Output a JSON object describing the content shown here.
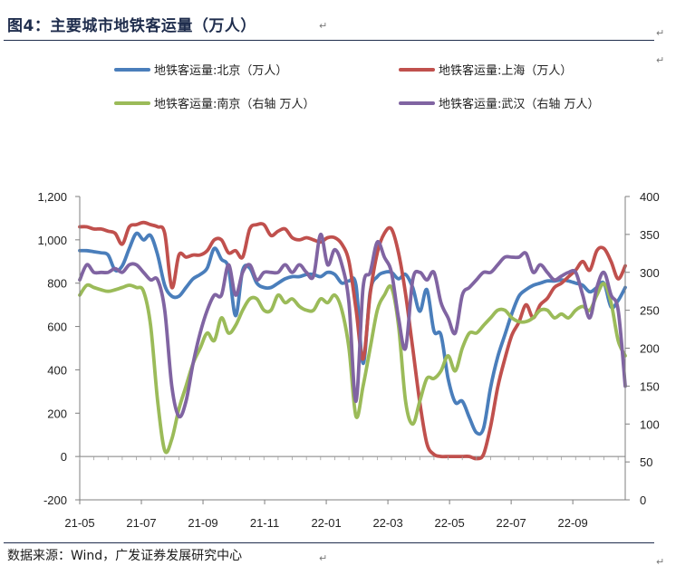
{
  "header": {
    "title": "图4：主要城市地铁客运量（万人）"
  },
  "footer": {
    "source": "数据来源：Wind，广发证券发展研究中心"
  },
  "chart_data": {
    "type": "line",
    "title": "图4：主要城市地铁客运量（万人）",
    "x_tick_labels": [
      "21-05",
      "21-07",
      "21-09",
      "21-11",
      "22-01",
      "22-03",
      "22-05",
      "22-07",
      "22-09"
    ],
    "x_range_weeks": [
      0,
      77
    ],
    "x_tick_weeks": [
      0,
      8.7,
      17.4,
      26.1,
      34.8,
      43.5,
      52.2,
      60.9,
      69.6
    ],
    "left_axis": {
      "min": -200,
      "max": 1200,
      "step": 200,
      "tick_labels": [
        "-200",
        "0",
        "200",
        "400",
        "600",
        "800",
        "1,000",
        "1,200"
      ]
    },
    "right_axis": {
      "min": 0,
      "max": 400,
      "step": 50,
      "tick_labels": [
        "0",
        "50",
        "100",
        "150",
        "200",
        "250",
        "300",
        "350",
        "400"
      ]
    },
    "legend_position": "top",
    "series": [
      {
        "name": "地铁客运量:北京（万人）",
        "axis": "left",
        "color": "#4a7ebb",
        "points": [
          [
            0,
            950
          ],
          [
            1,
            950
          ],
          [
            2,
            945
          ],
          [
            3,
            940
          ],
          [
            4,
            930
          ],
          [
            5,
            860
          ],
          [
            6,
            880
          ],
          [
            7,
            960
          ],
          [
            8,
            1030
          ],
          [
            9,
            1000
          ],
          [
            10,
            1020
          ],
          [
            11,
            930
          ],
          [
            12,
            790
          ],
          [
            13,
            740
          ],
          [
            14,
            740
          ],
          [
            15,
            780
          ],
          [
            16,
            820
          ],
          [
            17,
            840
          ],
          [
            18,
            870
          ],
          [
            19,
            960
          ],
          [
            20,
            910
          ],
          [
            21,
            870
          ],
          [
            22,
            650
          ],
          [
            23,
            860
          ],
          [
            24,
            870
          ],
          [
            25,
            800
          ],
          [
            26,
            780
          ],
          [
            27,
            780
          ],
          [
            28,
            800
          ],
          [
            29,
            820
          ],
          [
            30,
            830
          ],
          [
            31,
            830
          ],
          [
            32,
            840
          ],
          [
            33,
            840
          ],
          [
            34,
            830
          ],
          [
            35,
            850
          ],
          [
            36,
            840
          ],
          [
            37,
            800
          ],
          [
            38,
            810
          ],
          [
            39,
            790
          ],
          [
            40,
            430
          ],
          [
            41,
            760
          ],
          [
            42,
            830
          ],
          [
            43,
            850
          ],
          [
            44,
            850
          ],
          [
            45,
            820
          ],
          [
            46,
            840
          ],
          [
            47,
            780
          ],
          [
            48,
            670
          ],
          [
            49,
            770
          ],
          [
            50,
            580
          ],
          [
            51,
            560
          ],
          [
            52,
            360
          ],
          [
            53,
            250
          ],
          [
            54,
            255
          ],
          [
            55,
            180
          ],
          [
            56,
            110
          ],
          [
            57,
            130
          ],
          [
            58,
            320
          ],
          [
            59,
            460
          ],
          [
            60,
            560
          ],
          [
            61,
            660
          ],
          [
            62,
            740
          ],
          [
            63,
            770
          ],
          [
            64,
            790
          ],
          [
            65,
            800
          ],
          [
            66,
            810
          ],
          [
            67,
            810
          ],
          [
            68,
            815
          ],
          [
            69,
            810
          ],
          [
            70,
            800
          ],
          [
            71,
            790
          ],
          [
            72,
            760
          ],
          [
            73,
            780
          ],
          [
            74,
            800
          ],
          [
            75,
            690
          ],
          [
            76,
            720
          ],
          [
            77,
            780
          ]
        ]
      },
      {
        "name": "地铁客运量:上海（万人）",
        "axis": "left",
        "color": "#c0504d",
        "points": [
          [
            0,
            1060
          ],
          [
            1,
            1060
          ],
          [
            2,
            1050
          ],
          [
            3,
            1050
          ],
          [
            4,
            1040
          ],
          [
            5,
            1030
          ],
          [
            6,
            980
          ],
          [
            7,
            1060
          ],
          [
            8,
            1070
          ],
          [
            9,
            1080
          ],
          [
            10,
            1070
          ],
          [
            11,
            1060
          ],
          [
            12,
            1030
          ],
          [
            13,
            780
          ],
          [
            14,
            930
          ],
          [
            15,
            920
          ],
          [
            16,
            930
          ],
          [
            17,
            930
          ],
          [
            18,
            950
          ],
          [
            19,
            1000
          ],
          [
            20,
            1000
          ],
          [
            21,
            940
          ],
          [
            22,
            950
          ],
          [
            23,
            920
          ],
          [
            24,
            1050
          ],
          [
            25,
            1070
          ],
          [
            26,
            1070
          ],
          [
            27,
            1020
          ],
          [
            28,
            1040
          ],
          [
            29,
            1050
          ],
          [
            30,
            1010
          ],
          [
            31,
            1000
          ],
          [
            32,
            1010
          ],
          [
            33,
            1000
          ],
          [
            34,
            990
          ],
          [
            35,
            1010
          ],
          [
            36,
            1010
          ],
          [
            37,
            980
          ],
          [
            38,
            900
          ],
          [
            39,
            680
          ],
          [
            40,
            450
          ],
          [
            41,
            750
          ],
          [
            42,
            940
          ],
          [
            43,
            1030
          ],
          [
            44,
            1050
          ],
          [
            45,
            940
          ],
          [
            46,
            750
          ],
          [
            47,
            500
          ],
          [
            48,
            250
          ],
          [
            49,
            60
          ],
          [
            50,
            10
          ],
          [
            51,
            0
          ],
          [
            52,
            0
          ],
          [
            53,
            0
          ],
          [
            54,
            0
          ],
          [
            55,
            0
          ],
          [
            56,
            -10
          ],
          [
            57,
            10
          ],
          [
            58,
            140
          ],
          [
            59,
            320
          ],
          [
            60,
            450
          ],
          [
            61,
            560
          ],
          [
            62,
            620
          ],
          [
            63,
            700
          ],
          [
            64,
            640
          ],
          [
            65,
            700
          ],
          [
            66,
            730
          ],
          [
            67,
            780
          ],
          [
            68,
            800
          ],
          [
            69,
            830
          ],
          [
            70,
            860
          ],
          [
            71,
            900
          ],
          [
            72,
            860
          ],
          [
            73,
            950
          ],
          [
            74,
            960
          ],
          [
            75,
            900
          ],
          [
            76,
            820
          ],
          [
            77,
            880
          ]
        ]
      },
      {
        "name": "地铁客运量:南京（右轴 万人）",
        "axis": "right",
        "color": "#9bbb59",
        "points": [
          [
            0,
            270
          ],
          [
            1,
            283
          ],
          [
            2,
            280
          ],
          [
            3,
            277
          ],
          [
            4,
            275
          ],
          [
            5,
            277
          ],
          [
            6,
            280
          ],
          [
            7,
            283
          ],
          [
            8,
            280
          ],
          [
            9,
            275
          ],
          [
            10,
            230
          ],
          [
            11,
            130
          ],
          [
            12,
            65
          ],
          [
            13,
            80
          ],
          [
            14,
            120
          ],
          [
            15,
            150
          ],
          [
            16,
            180
          ],
          [
            17,
            200
          ],
          [
            18,
            220
          ],
          [
            19,
            210
          ],
          [
            20,
            240
          ],
          [
            21,
            220
          ],
          [
            22,
            230
          ],
          [
            23,
            250
          ],
          [
            24,
            265
          ],
          [
            25,
            265
          ],
          [
            26,
            250
          ],
          [
            27,
            250
          ],
          [
            28,
            270
          ],
          [
            29,
            260
          ],
          [
            30,
            265
          ],
          [
            31,
            255
          ],
          [
            32,
            250
          ],
          [
            33,
            250
          ],
          [
            34,
            265
          ],
          [
            35,
            260
          ],
          [
            36,
            270
          ],
          [
            37,
            250
          ],
          [
            38,
            200
          ],
          [
            39,
            110
          ],
          [
            40,
            150
          ],
          [
            41,
            200
          ],
          [
            42,
            250
          ],
          [
            43,
            270
          ],
          [
            44,
            280
          ],
          [
            45,
            230
          ],
          [
            46,
            130
          ],
          [
            47,
            100
          ],
          [
            48,
            130
          ],
          [
            49,
            160
          ],
          [
            50,
            160
          ],
          [
            51,
            170
          ],
          [
            52,
            190
          ],
          [
            53,
            170
          ],
          [
            54,
            200
          ],
          [
            55,
            220
          ],
          [
            56,
            220
          ],
          [
            57,
            230
          ],
          [
            58,
            240
          ],
          [
            59,
            250
          ],
          [
            60,
            250
          ],
          [
            61,
            240
          ],
          [
            62,
            235
          ],
          [
            63,
            235
          ],
          [
            64,
            240
          ],
          [
            65,
            250
          ],
          [
            66,
            250
          ],
          [
            67,
            240
          ],
          [
            68,
            245
          ],
          [
            69,
            240
          ],
          [
            70,
            250
          ],
          [
            71,
            255
          ],
          [
            72,
            250
          ],
          [
            73,
            270
          ],
          [
            74,
            285
          ],
          [
            75,
            260
          ],
          [
            76,
            210
          ],
          [
            77,
            190
          ]
        ]
      },
      {
        "name": "地铁客运量:武汉（右轴 万人）",
        "axis": "right",
        "color": "#8064a2",
        "points": [
          [
            0,
            290
          ],
          [
            1,
            310
          ],
          [
            2,
            300
          ],
          [
            3,
            300
          ],
          [
            4,
            300
          ],
          [
            5,
            305
          ],
          [
            6,
            300
          ],
          [
            7,
            310
          ],
          [
            8,
            310
          ],
          [
            9,
            300
          ],
          [
            10,
            290
          ],
          [
            11,
            290
          ],
          [
            12,
            250
          ],
          [
            13,
            150
          ],
          [
            14,
            110
          ],
          [
            15,
            130
          ],
          [
            16,
            180
          ],
          [
            17,
            220
          ],
          [
            18,
            250
          ],
          [
            19,
            270
          ],
          [
            20,
            270
          ],
          [
            21,
            310
          ],
          [
            22,
            270
          ],
          [
            23,
            300
          ],
          [
            24,
            310
          ],
          [
            25,
            290
          ],
          [
            26,
            300
          ],
          [
            27,
            300
          ],
          [
            28,
            300
          ],
          [
            29,
            310
          ],
          [
            30,
            300
          ],
          [
            31,
            310
          ],
          [
            32,
            300
          ],
          [
            33,
            295
          ],
          [
            34,
            350
          ],
          [
            35,
            310
          ],
          [
            36,
            330
          ],
          [
            37,
            310
          ],
          [
            38,
            260
          ],
          [
            39,
            130
          ],
          [
            40,
            280
          ],
          [
            41,
            300
          ],
          [
            42,
            340
          ],
          [
            43,
            320
          ],
          [
            44,
            300
          ],
          [
            45,
            240
          ],
          [
            46,
            200
          ],
          [
            47,
            290
          ],
          [
            48,
            300
          ],
          [
            49,
            290
          ],
          [
            50,
            300
          ],
          [
            51,
            260
          ],
          [
            52,
            240
          ],
          [
            53,
            220
          ],
          [
            54,
            270
          ],
          [
            55,
            280
          ],
          [
            56,
            290
          ],
          [
            57,
            300
          ],
          [
            58,
            300
          ],
          [
            59,
            310
          ],
          [
            60,
            320
          ],
          [
            61,
            320
          ],
          [
            62,
            320
          ],
          [
            63,
            325
          ],
          [
            64,
            300
          ],
          [
            65,
            310
          ],
          [
            66,
            300
          ],
          [
            67,
            290
          ],
          [
            68,
            295
          ],
          [
            69,
            300
          ],
          [
            70,
            300
          ],
          [
            71,
            270
          ],
          [
            72,
            240
          ],
          [
            73,
            280
          ],
          [
            74,
            300
          ],
          [
            75,
            270
          ],
          [
            76,
            250
          ],
          [
            77,
            150
          ]
        ]
      }
    ]
  }
}
